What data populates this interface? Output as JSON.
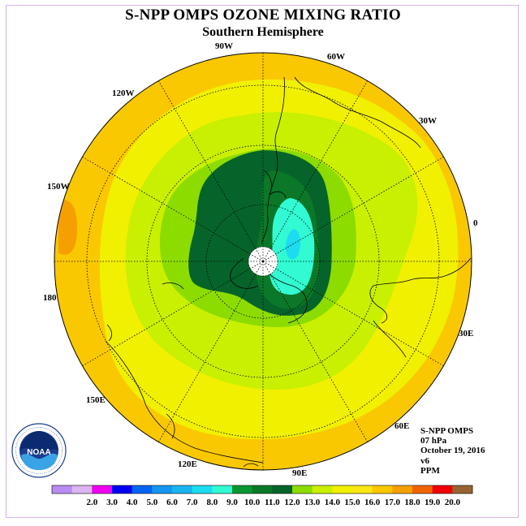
{
  "title": "S-NPP OMPS OZONE MIXING RATIO",
  "subtitle": "Southern Hemisphere",
  "longitude_labels": {
    "lon_0": "0",
    "lon_30w": "30W",
    "lon_60w": "60W",
    "lon_90w": "90W",
    "lon_120w": "120W",
    "lon_150w": "150W",
    "lon_180": "180",
    "lon_150e": "150E",
    "lon_120e": "120E",
    "lon_90e": "90E",
    "lon_60e": "60E",
    "lon_30e": "30E"
  },
  "info": {
    "instrument": "S-NPP OMPS",
    "level": "07 hPa",
    "date": "October 19, 2016",
    "version": "v6",
    "units": "PPM"
  },
  "logo_text": "NOAA",
  "colorbar": {
    "colors": [
      "#b88cf0",
      "#dcb4f0",
      "#f000f0",
      "#0000f0",
      "#0064f0",
      "#1496f0",
      "#19b4f0",
      "#1edcf0",
      "#32fad2",
      "#0a9632",
      "#0a7828",
      "#06642a",
      "#8cdc00",
      "#c8f000",
      "#f0f000",
      "#fae614",
      "#fac800",
      "#f5a000",
      "#f06400",
      "#f00000",
      "#966432"
    ],
    "labels": [
      "2.0",
      "3.0",
      "4.0",
      "5.0",
      "6.0",
      "7.0",
      "8.0",
      "9.0",
      "10.0",
      "11.0",
      "12.0",
      "13.0",
      "14.0",
      "15.0",
      "16.0",
      "17.0",
      "18.0",
      "19.0",
      "20.0"
    ]
  }
}
